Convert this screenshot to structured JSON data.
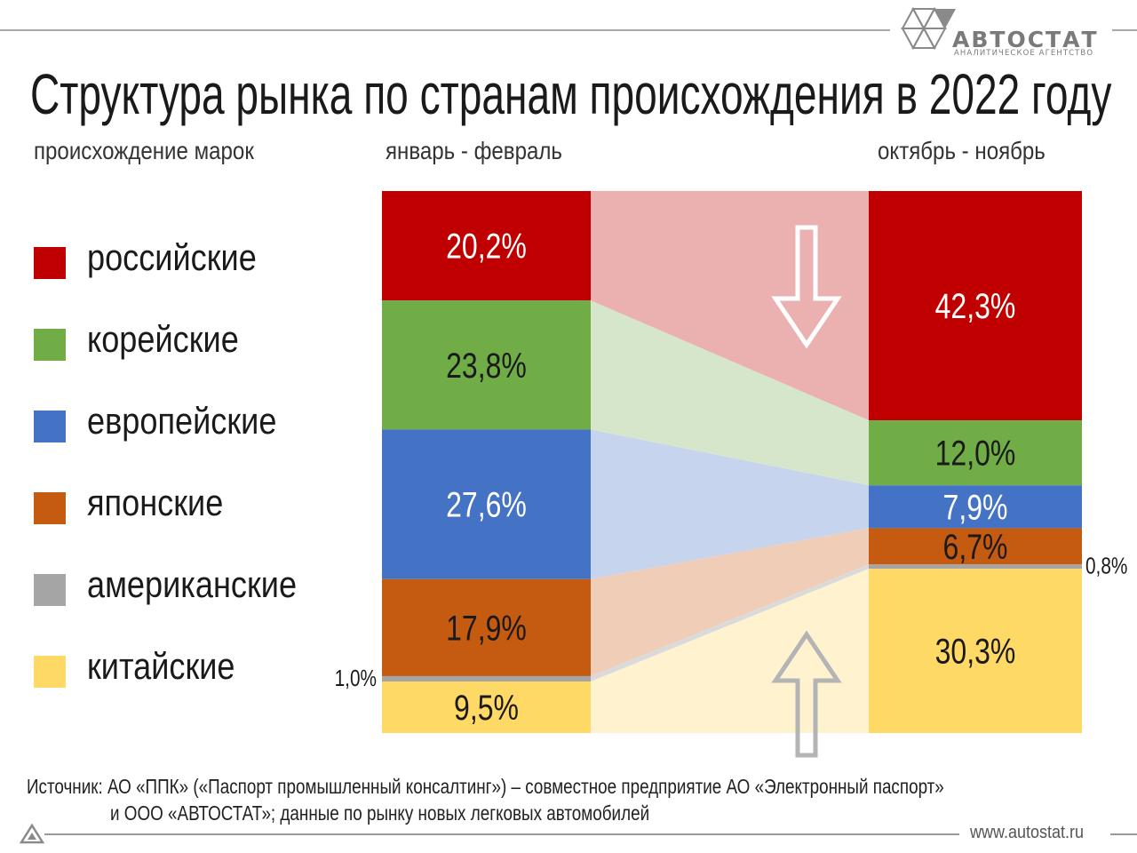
{
  "brand": {
    "name": "АВТОСТАТ",
    "subtitle": "АНАЛИТИЧЕСКОЕ АГЕНТСТВО",
    "website": "www.autostat.ru"
  },
  "headers": {
    "legend_header": "происхождение марок",
    "period_start": "январь - февраль",
    "period_end": "октябрь - ноябрь"
  },
  "legend": [
    {
      "label": "российские",
      "color": "#C00000"
    },
    {
      "label": "корейские",
      "color": "#70AD47"
    },
    {
      "label": "европейские",
      "color": "#4472C4"
    },
    {
      "label": "японские",
      "color": "#C55A11"
    },
    {
      "label": "американские",
      "color": "#A5A5A5"
    },
    {
      "label": "китайские",
      "color": "#FFD966"
    }
  ],
  "chart_data": {
    "type": "bar",
    "stacked": true,
    "normalized_percent": true,
    "title": "Структура рынка по странам происхождения в 2022 году",
    "categories": [
      "январь - февраль",
      "октябрь - ноябрь"
    ],
    "series": [
      {
        "name": "российские",
        "color": "#C00000",
        "flow_color": "#EBB0B0",
        "values": [
          20.2,
          42.3
        ],
        "labels": [
          "20,2%",
          "42,3%"
        ],
        "label_color": "#ffffff"
      },
      {
        "name": "корейские",
        "color": "#70AD47",
        "flow_color": "#D6E6CA",
        "values": [
          23.8,
          12.0
        ],
        "labels": [
          "23,8%",
          "12,0%"
        ],
        "label_color": "#1a1a1a"
      },
      {
        "name": "европейские",
        "color": "#4472C4",
        "flow_color": "#C6D4EE",
        "values": [
          27.6,
          7.9
        ],
        "labels": [
          "27,6%",
          "7,9%"
        ],
        "label_color": "#ffffff"
      },
      {
        "name": "японские",
        "color": "#C55A11",
        "flow_color": "#F0CDB6",
        "values": [
          17.9,
          6.7
        ],
        "labels": [
          "17,9%",
          "6,7%"
        ],
        "label_color": "#1a1a1a"
      },
      {
        "name": "американские",
        "color": "#A5A5A5",
        "flow_color": "#DADADA",
        "values": [
          1.0,
          0.8
        ],
        "labels": [
          "1,0%",
          "0,8%"
        ],
        "label_color": "#1a1a1a",
        "label_outside": true
      },
      {
        "name": "китайские",
        "color": "#FFD966",
        "flow_color": "#FFF3CF",
        "values": [
          9.5,
          30.3
        ],
        "labels": [
          "9,5%",
          "30,3%"
        ],
        "label_color": "#1a1a1a"
      }
    ],
    "annotations": [
      {
        "type": "arrow",
        "direction": "down",
        "near": "российские"
      },
      {
        "type": "arrow",
        "direction": "up",
        "near": "китайские"
      }
    ],
    "grid": false
  },
  "source": {
    "line1": "Источник: АО «ППК» («Паспорт промышленный консалтинг») – совместное предприятие АО «Электронный паспорт»",
    "line2": "и ООО «АВТОСТАТ»; данные по рынку новых легковых автомобилей"
  }
}
